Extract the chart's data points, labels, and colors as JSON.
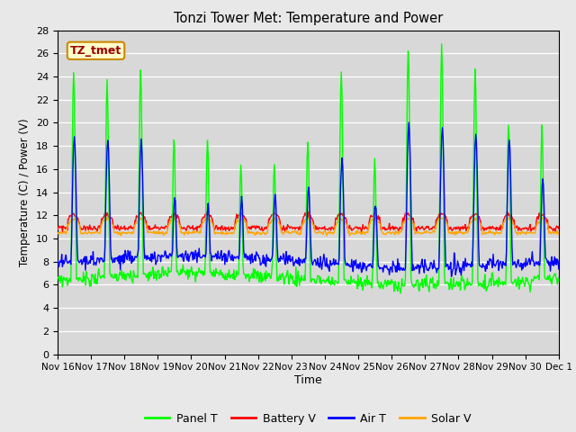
{
  "title": "Tonzi Tower Met: Temperature and Power",
  "xlabel": "Time",
  "ylabel": "Temperature (C) / Power (V)",
  "ylim": [
    0,
    28
  ],
  "yticks": [
    0,
    2,
    4,
    6,
    8,
    10,
    12,
    14,
    16,
    18,
    20,
    22,
    24,
    26,
    28
  ],
  "xtick_labels": [
    "Nov 16",
    "Nov 17",
    "Nov 18",
    "Nov 19",
    "Nov 20",
    "Nov 21",
    "Nov 22",
    "Nov 23",
    "Nov 24",
    "Nov 25",
    "Nov 26",
    "Nov 27",
    "Nov 28",
    "Nov 29",
    "Nov 30",
    "Dec 1"
  ],
  "legend_labels": [
    "Panel T",
    "Battery V",
    "Air T",
    "Solar V"
  ],
  "legend_colors": [
    "#00ff00",
    "#ff0000",
    "#0000ff",
    "#ffa500"
  ],
  "label_box_text": "TZ_tmet",
  "label_box_color": "#ffffcc",
  "label_box_edge": "#cc8800",
  "label_box_text_color": "#990000",
  "fig_facecolor": "#e8e8e8",
  "plot_bg_color": "#d8d8d8",
  "grid_color": "#ffffff",
  "n_days": 15,
  "pts_per_day": 48
}
